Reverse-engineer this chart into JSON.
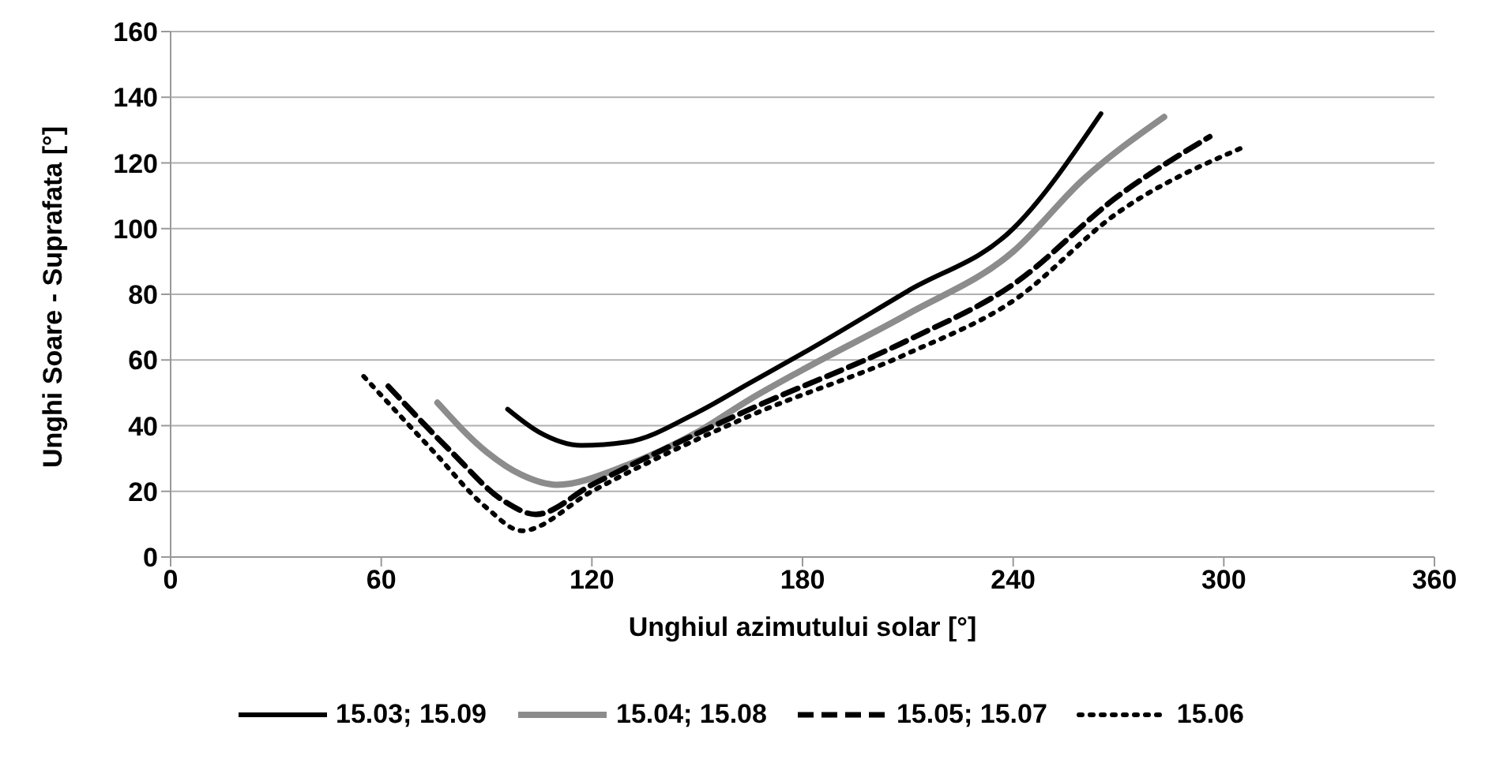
{
  "chart_data": {
    "type": "line",
    "xlabel": "Unghiul azimutului solar [°]",
    "ylabel": "Unghi Soare - Suprafata [°]",
    "xlim": [
      0,
      360
    ],
    "xticks": [
      0,
      60,
      120,
      180,
      240,
      300,
      360
    ],
    "ylim": [
      0,
      160
    ],
    "yticks": [
      0,
      20,
      40,
      60,
      80,
      100,
      120,
      140,
      160
    ],
    "grid": "y",
    "legend": "bottom",
    "marker": "none",
    "series": [
      {
        "name": "15.03; 15.09",
        "color": "#000000",
        "line_style": "solid",
        "x": [
          96,
          105,
          117,
          130,
          150,
          165,
          180,
          210,
          240,
          265
        ],
        "values": [
          45,
          38,
          34,
          35,
          44,
          53,
          62,
          81,
          100,
          135
        ]
      },
      {
        "name": "15.04; 15.08",
        "color": "#8c8c8c",
        "line_style": "solid",
        "x": [
          76,
          90,
          100,
          110,
          130,
          150,
          165,
          180,
          210,
          240,
          260,
          283
        ],
        "values": [
          47,
          32,
          25,
          22,
          28,
          38,
          48,
          57,
          74,
          93,
          115,
          134
        ]
      },
      {
        "name": "15.05; 15.07",
        "color": "#000000",
        "line_style": "dashed",
        "x": [
          62,
          80,
          95,
          104,
          120,
          165,
          210,
          240,
          270,
          296
        ],
        "values": [
          52,
          32,
          17,
          13,
          22,
          45,
          66,
          83,
          110,
          128
        ]
      },
      {
        "name": "15.06",
        "color": "#000000",
        "line_style": "dotted",
        "x": [
          55,
          75,
          90,
          100,
          120,
          165,
          210,
          240,
          270,
          306
        ],
        "values": [
          55,
          32,
          15,
          8,
          20,
          43,
          62,
          78,
          105,
          125
        ]
      }
    ]
  }
}
